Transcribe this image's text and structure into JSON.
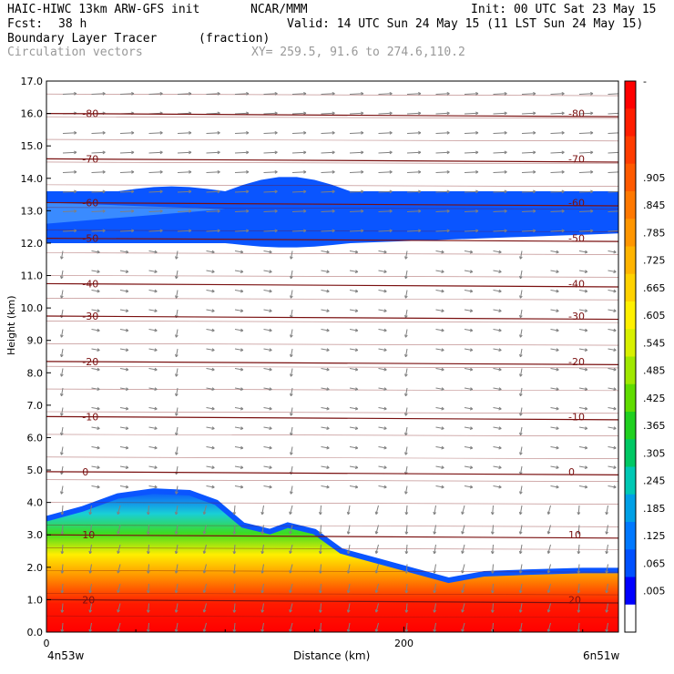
{
  "header": {
    "model": "HAIC-HIWC 13km ARW-GFS init",
    "org": "NCAR/MMM",
    "init": "Init: 00 UTC Sat 23 May 15",
    "fcst_label": "Fcst:",
    "fcst_value": "38 h",
    "valid": "Valid: 14 UTC Sun 24 May 15 (11 LST Sun 24 May 15)",
    "field": "Boundary Layer Tracer",
    "field_units": "(fraction)",
    "vectors": "Circulation vectors",
    "xy": "XY= 259.5, 91.6 to 274.6,110.2"
  },
  "colors": {
    "red": "#ff1a00",
    "orange": "#ff8a00",
    "yellow": "#ffee00",
    "green": "#3cdc20",
    "cyan": "#19cfd6",
    "blue": "#0a55ff",
    "lightblue": "#3a8bff",
    "contour": "#7a1010",
    "vector": "#808080"
  },
  "chart_data": {
    "type": "heatmap",
    "xlabel": "Distance (km)",
    "ylabel": "Height (km)",
    "xlim": [
      0,
      320
    ],
    "ylim": [
      0,
      17
    ],
    "x_ticks": [
      {
        "v": 0,
        "label": "0"
      },
      {
        "v": 200,
        "label": "200"
      }
    ],
    "x_endpoints": [
      "4n53w",
      "6n51w"
    ],
    "y_ticks": [
      "0.0",
      "1.0",
      "2.0",
      "3.0",
      "4.0",
      "5.0",
      "6.0",
      "7.0",
      "8.0",
      "9.0",
      "10.0",
      "11.0",
      "12.0",
      "13.0",
      "14.0",
      "15.0",
      "16.0",
      "17.0"
    ],
    "colorbar": {
      "labels": [
        "-",
        ".905",
        ".845",
        ".785",
        ".725",
        ".665",
        ".605",
        ".545",
        ".485",
        ".425",
        ".365",
        ".305",
        ".245",
        ".185",
        ".125",
        ".065",
        ".005"
      ],
      "colors": [
        "#ff0000",
        "#ff1e00",
        "#ff3c00",
        "#ff5a00",
        "#ff7800",
        "#ff9600",
        "#ffb400",
        "#ffd200",
        "#fff000",
        "#d8f000",
        "#a0e800",
        "#60dc00",
        "#20d020",
        "#00c864",
        "#00c8b4",
        "#00a0e6",
        "#0078ff",
        "#0050ff",
        "#0000ff",
        "#ffffff"
      ]
    },
    "temperature_contours": [
      {
        "label": "20",
        "y": 1.0
      },
      {
        "label": "10",
        "y": 3.0
      },
      {
        "label": "0",
        "y": 4.95
      },
      {
        "label": "-10",
        "y": 6.65
      },
      {
        "label": "-20",
        "y": 8.35
      },
      {
        "label": "-30",
        "y": 9.75
      },
      {
        "label": "-40",
        "y": 10.75
      },
      {
        "label": "-50",
        "y": 12.15
      },
      {
        "label": "-60",
        "y": 13.25
      },
      {
        "label": "-70",
        "y": 14.6
      },
      {
        "label": "-80",
        "y": 16.0
      }
    ],
    "tracer_layer_top_km": [
      [
        0,
        3.5
      ],
      [
        20,
        3.8
      ],
      [
        40,
        4.2
      ],
      [
        60,
        4.35
      ],
      [
        80,
        4.3
      ],
      [
        95,
        4.0
      ],
      [
        110,
        3.3
      ],
      [
        125,
        3.1
      ],
      [
        135,
        3.3
      ],
      [
        150,
        3.1
      ],
      [
        165,
        2.5
      ],
      [
        185,
        2.2
      ],
      [
        205,
        1.9
      ],
      [
        225,
        1.6
      ],
      [
        245,
        1.8
      ],
      [
        270,
        1.85
      ],
      [
        300,
        1.9
      ],
      [
        320,
        1.9
      ]
    ],
    "upper_tracer_layer_km": {
      "bottom": 12.0,
      "top": 13.6
    }
  }
}
